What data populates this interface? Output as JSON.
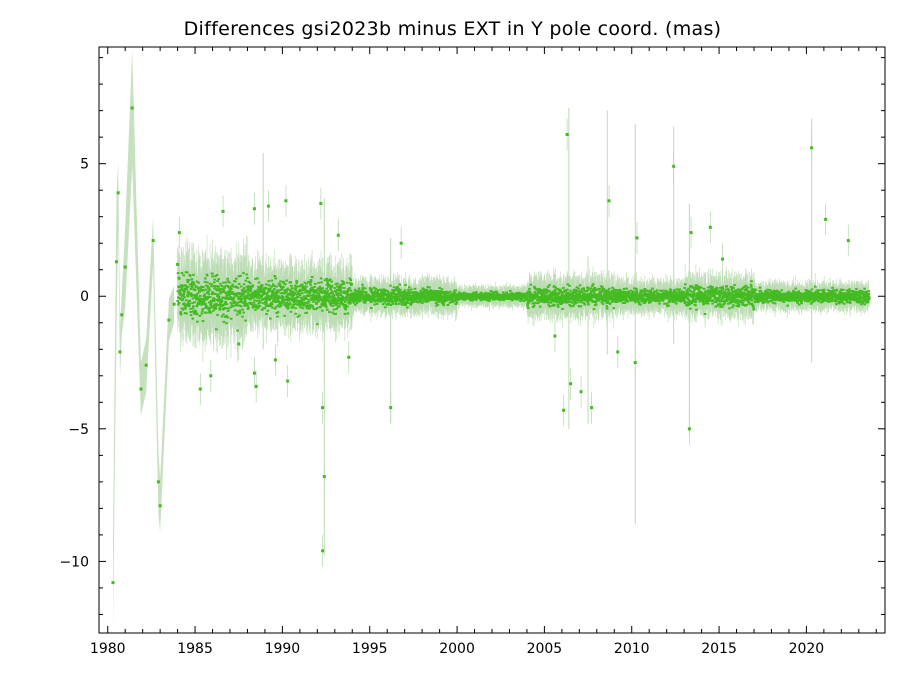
{
  "chart_data": {
    "type": "scatter",
    "title": "Differences gsi2023b minus EXT in Y pole coord. (mas)",
    "xlabel": "",
    "ylabel": "",
    "xlim": [
      1979.5,
      2024.5
    ],
    "ylim": [
      -12.7,
      9.4
    ],
    "x_ticks": [
      1980,
      1985,
      1990,
      1995,
      2000,
      2005,
      2010,
      2015,
      2020
    ],
    "x_tick_labels": [
      "1980",
      "1985",
      "1990",
      "1995",
      "2000",
      "2005",
      "2010",
      "2015",
      "2020"
    ],
    "y_ticks": [
      -10,
      -5,
      0,
      5
    ],
    "y_tick_labels": [
      "−10",
      "−5",
      "0",
      "5"
    ],
    "grid": false,
    "legend": "none",
    "colors": {
      "points": "#44bb22",
      "error_bars": "#bcdcb4",
      "axes": "#000000"
    },
    "early_series": [
      {
        "x": 1980.3,
        "y": -10.8,
        "err": 1.7
      },
      {
        "x": 1980.5,
        "y": 1.3,
        "err": 2.5
      },
      {
        "x": 1980.6,
        "y": 3.9,
        "err": 1.2
      },
      {
        "x": 1980.7,
        "y": -2.1,
        "err": 1.0
      },
      {
        "x": 1980.8,
        "y": -0.7,
        "err": 0.8
      },
      {
        "x": 1981.0,
        "y": 1.1,
        "err": 1.5
      },
      {
        "x": 1981.4,
        "y": 7.1,
        "err": 2.2
      },
      {
        "x": 1981.9,
        "y": -3.5,
        "err": 1.0
      },
      {
        "x": 1982.2,
        "y": -2.6,
        "err": 1.0
      },
      {
        "x": 1982.6,
        "y": 2.1,
        "err": 0.9
      },
      {
        "x": 1982.9,
        "y": -7.0,
        "err": 1.2
      },
      {
        "x": 1983.0,
        "y": -7.9,
        "err": 1.0
      },
      {
        "x": 1983.5,
        "y": -0.9,
        "err": 0.8
      },
      {
        "x": 1983.8,
        "y": -0.3,
        "err": 0.7
      }
    ],
    "outliers": [
      {
        "x": 1984.1,
        "y": 2.4
      },
      {
        "x": 1984.0,
        "y": 1.2
      },
      {
        "x": 1985.3,
        "y": -3.5
      },
      {
        "x": 1985.9,
        "y": -3.0
      },
      {
        "x": 1986.6,
        "y": 3.2
      },
      {
        "x": 1987.5,
        "y": -1.8
      },
      {
        "x": 1988.4,
        "y": 3.3
      },
      {
        "x": 1988.4,
        "y": -2.9
      },
      {
        "x": 1988.5,
        "y": -3.4
      },
      {
        "x": 1989.2,
        "y": 3.4
      },
      {
        "x": 1989.6,
        "y": -2.4
      },
      {
        "x": 1990.2,
        "y": 3.6
      },
      {
        "x": 1990.3,
        "y": -3.2
      },
      {
        "x": 1992.2,
        "y": 3.5
      },
      {
        "x": 1992.3,
        "y": -4.2
      },
      {
        "x": 1992.4,
        "y": -6.8
      },
      {
        "x": 1992.3,
        "y": -9.6
      },
      {
        "x": 1993.2,
        "y": 2.3
      },
      {
        "x": 1993.8,
        "y": -2.3
      },
      {
        "x": 1996.2,
        "y": -4.2
      },
      {
        "x": 1996.8,
        "y": 2.0
      },
      {
        "x": 2005.6,
        "y": -1.5
      },
      {
        "x": 2006.1,
        "y": -4.3
      },
      {
        "x": 2006.3,
        "y": 6.1
      },
      {
        "x": 2006.5,
        "y": -3.3
      },
      {
        "x": 2007.1,
        "y": -3.6
      },
      {
        "x": 2007.7,
        "y": -4.2
      },
      {
        "x": 2008.7,
        "y": 3.6
      },
      {
        "x": 2009.2,
        "y": -2.1
      },
      {
        "x": 2010.2,
        "y": -2.5
      },
      {
        "x": 2010.3,
        "y": 2.2
      },
      {
        "x": 2012.4,
        "y": 4.9
      },
      {
        "x": 2013.3,
        "y": -5.0
      },
      {
        "x": 2013.4,
        "y": 2.4
      },
      {
        "x": 2014.5,
        "y": 2.6
      },
      {
        "x": 2020.3,
        "y": 5.6
      },
      {
        "x": 2021.1,
        "y": 2.9
      },
      {
        "x": 2022.4,
        "y": 2.1
      },
      {
        "x": 2015.2,
        "y": 1.4
      }
    ],
    "tall_error_bars": [
      {
        "x": 1988.9,
        "lo": -2.0,
        "hi": 5.4
      },
      {
        "x": 1992.4,
        "lo": -9.8,
        "hi": 3.7
      },
      {
        "x": 2006.4,
        "lo": -5.0,
        "hi": 7.1
      },
      {
        "x": 2008.6,
        "lo": -2.2,
        "hi": 7.0
      },
      {
        "x": 2010.2,
        "lo": -8.6,
        "hi": 6.5
      },
      {
        "x": 2012.4,
        "lo": -1.8,
        "hi": 6.4
      },
      {
        "x": 2013.3,
        "lo": -5.2,
        "hi": 3.5
      },
      {
        "x": 2020.3,
        "lo": -2.5,
        "hi": 6.7
      },
      {
        "x": 2007.5,
        "lo": -4.8,
        "hi": 1.5
      },
      {
        "x": 1996.2,
        "lo": -4.8,
        "hi": 2.2
      }
    ],
    "bulk_scatter_sd_by_period": [
      {
        "from": 1984.0,
        "to": 1988.0,
        "sd": 0.75,
        "err": 1.2
      },
      {
        "from": 1988.0,
        "to": 1994.0,
        "sd": 0.5,
        "err": 0.9
      },
      {
        "from": 1994.0,
        "to": 2000.0,
        "sd": 0.25,
        "err": 0.5
      },
      {
        "from": 2000.0,
        "to": 2004.0,
        "sd": 0.12,
        "err": 0.3
      },
      {
        "from": 2004.0,
        "to": 2009.0,
        "sd": 0.28,
        "err": 0.6
      },
      {
        "from": 2009.0,
        "to": 2013.0,
        "sd": 0.22,
        "err": 0.5
      },
      {
        "from": 2013.0,
        "to": 2017.0,
        "sd": 0.35,
        "err": 0.6
      },
      {
        "from": 2017.0,
        "to": 2023.6,
        "sd": 0.2,
        "err": 0.4
      }
    ]
  }
}
